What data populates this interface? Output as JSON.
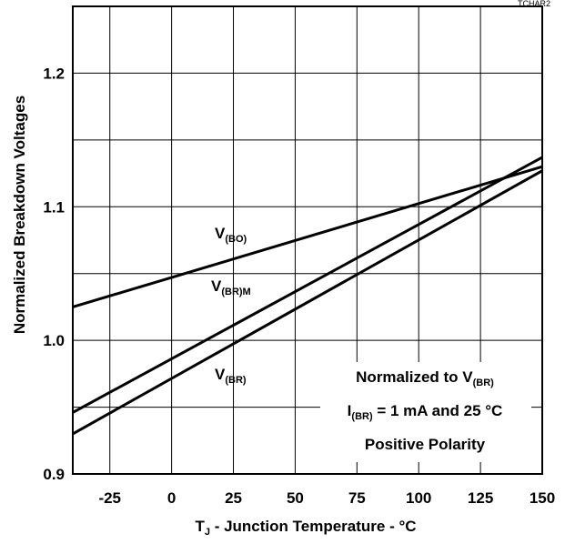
{
  "figure_id": "TCHAR2",
  "chart_data": {
    "type": "line",
    "xlabel": {
      "main": "T",
      "sub": "J",
      "rest": " - Junction Temperature - °C"
    },
    "ylabel": "Normalized Breakdown Voltages",
    "xlim": [
      -40,
      150
    ],
    "ylim": [
      0.9,
      1.25
    ],
    "xticks": [
      -25,
      0,
      25,
      50,
      75,
      100,
      125,
      150
    ],
    "xtick_labels": [
      "-25",
      "0",
      "25",
      "50",
      "75",
      "100",
      "125",
      "150"
    ],
    "yticks": [
      0.9,
      1.0,
      1.1,
      1.2
    ],
    "ytick_labels": [
      "0.9",
      "1.0",
      "1.1",
      "1.2"
    ],
    "x_grid": [
      -25,
      0,
      25,
      50,
      75,
      100,
      125
    ],
    "y_grid": [
      0.95,
      1.0,
      1.05,
      1.1,
      1.15,
      1.2
    ],
    "grid": true,
    "series": [
      {
        "label_main": "V",
        "label_sub": "(BO)",
        "x": [
          -40,
          150
        ],
        "y": [
          1.025,
          1.13
        ]
      },
      {
        "label_main": "V",
        "label_sub": "(BR)M",
        "x": [
          -40,
          150
        ],
        "y": [
          0.946,
          1.137
        ]
      },
      {
        "label_main": "V",
        "label_sub": "(BR)",
        "x": [
          -40,
          150
        ],
        "y": [
          0.93,
          1.127
        ]
      }
    ],
    "annotation": {
      "line1": {
        "main": "Normalized to V",
        "sub": "(BR)",
        "rest": ""
      },
      "line2": {
        "main": "I",
        "sub": "(BR)",
        "rest": " = 1 mA and 25 °C"
      },
      "line3": {
        "main": "Positive Polarity",
        "sub": "",
        "rest": ""
      }
    }
  }
}
